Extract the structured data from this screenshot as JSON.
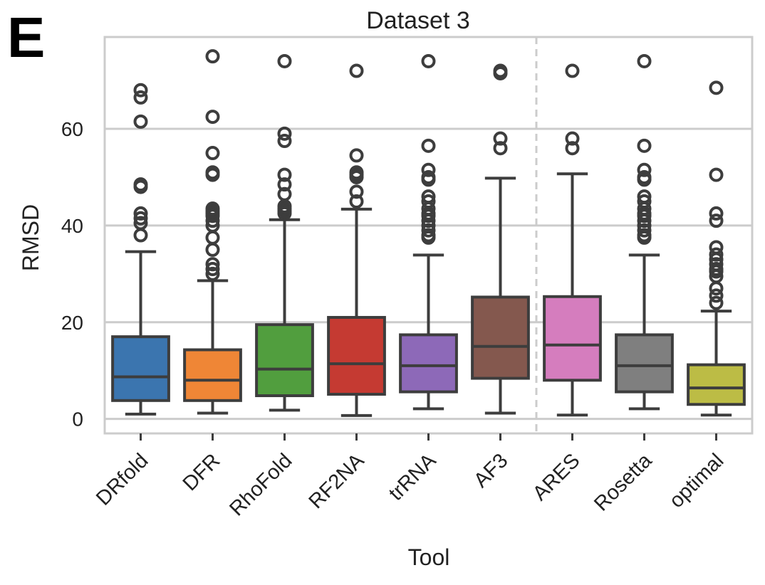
{
  "panel_label": "E",
  "chart_data": {
    "type": "boxplot",
    "title": "Dataset 3",
    "xlabel": "Tool",
    "ylabel": "RMSD",
    "ylim": [
      -3,
      79
    ],
    "yticks": [
      0,
      20,
      40,
      60
    ],
    "grid": true,
    "categories": [
      "DRfold",
      "DFR",
      "RhoFold",
      "RF2NA",
      "trRNA",
      "AF3",
      "ARES",
      "Rosetta",
      "optimal"
    ],
    "separator_after": "AF3",
    "colors": [
      "#3b75af",
      "#ef8636",
      "#519e3e",
      "#c53a32",
      "#8d69b8",
      "#84584e",
      "#d57dbe",
      "#7f7f7f",
      "#bcbc45"
    ],
    "boxes": [
      {
        "name": "DRfold",
        "whislo": 1.0,
        "q1": 3.8,
        "med": 8.7,
        "q3": 17.0,
        "whishi": 34.6,
        "fliers": [
          38,
          40.5,
          41.5,
          42.5,
          48,
          48.5,
          61.5,
          66.5,
          68
        ]
      },
      {
        "name": "DFR",
        "whislo": 1.2,
        "q1": 3.8,
        "med": 8.0,
        "q3": 14.3,
        "whishi": 28.6,
        "fliers": [
          30,
          31,
          32,
          35,
          37.5,
          40,
          41,
          42,
          42.5,
          43,
          43.5,
          50.5,
          51,
          55,
          62.5,
          75
        ]
      },
      {
        "name": "RhoFold",
        "whislo": 1.8,
        "q1": 4.8,
        "med": 10.3,
        "q3": 19.5,
        "whishi": 41.2,
        "fliers": [
          42.5,
          43,
          43.5,
          44,
          46.5,
          48.5,
          50.5,
          57.5,
          59,
          74
        ]
      },
      {
        "name": "RF2NA",
        "whislo": 0.7,
        "q1": 5.1,
        "med": 11.4,
        "q3": 21.0,
        "whishi": 43.4,
        "fliers": [
          45,
          47,
          50,
          50.5,
          51,
          54.5,
          72
        ]
      },
      {
        "name": "trRNA",
        "whislo": 2.1,
        "q1": 5.6,
        "med": 11.0,
        "q3": 17.4,
        "whishi": 33.9,
        "fliers": [
          37.5,
          38,
          39,
          40,
          41,
          42,
          42.5,
          43.5,
          45,
          46,
          49.5,
          50,
          51.5,
          56.5,
          74
        ]
      },
      {
        "name": "AF3",
        "whislo": 1.2,
        "q1": 8.4,
        "med": 15.0,
        "q3": 25.2,
        "whishi": 49.8,
        "fliers": [
          56,
          58,
          71.5,
          72
        ]
      },
      {
        "name": "ARES",
        "whislo": 0.8,
        "q1": 8.0,
        "med": 15.3,
        "q3": 25.3,
        "whishi": 50.7,
        "fliers": [
          56,
          58,
          72
        ]
      },
      {
        "name": "Rosetta",
        "whislo": 2.1,
        "q1": 5.6,
        "med": 11.0,
        "q3": 17.4,
        "whishi": 33.9,
        "fliers": [
          37.5,
          38,
          39,
          40,
          41,
          42,
          42.5,
          43.5,
          45,
          46,
          49.5,
          50,
          51.5,
          56.5,
          74
        ]
      },
      {
        "name": "optimal",
        "whislo": 0.8,
        "q1": 3.0,
        "med": 6.4,
        "q3": 11.2,
        "whishi": 22.3,
        "fliers": [
          24,
          25.5,
          27,
          29.5,
          30.5,
          31,
          32,
          33,
          34,
          35.5,
          41,
          42.5,
          50.5,
          68.5
        ]
      }
    ]
  }
}
